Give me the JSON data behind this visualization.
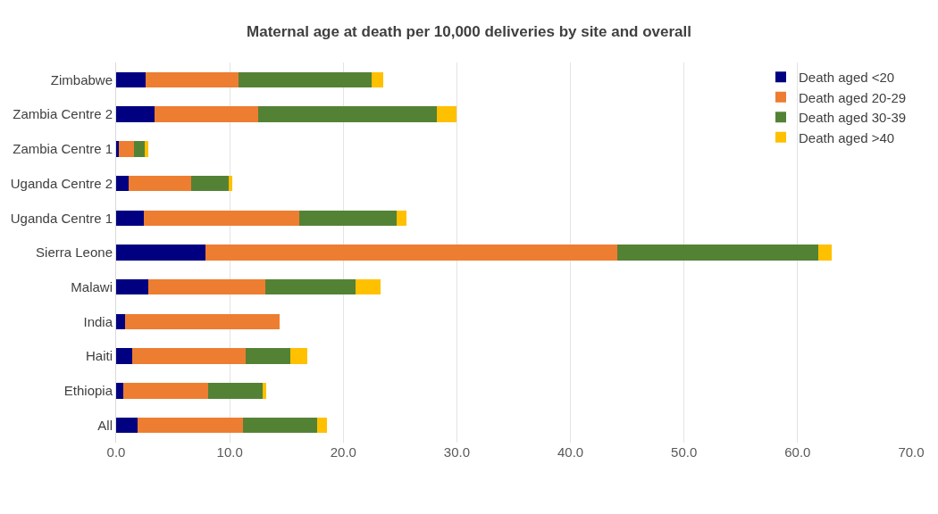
{
  "chart_data": {
    "type": "bar",
    "orientation": "horizontal",
    "stacked": true,
    "title": "Maternal age at death per 10,000 deliveries by site and overall",
    "categories": [
      "Zimbabwe",
      "Zambia Centre 2",
      "Zambia Centre 1",
      "Uganda Centre 2",
      "Uganda Centre 1",
      "Sierra Leone",
      "Malawi",
      "India",
      "Haiti",
      "Ethiopia",
      "All"
    ],
    "series": [
      {
        "name": "Death aged <20",
        "color": "#000080",
        "values": [
          2.6,
          3.4,
          0.2,
          1.1,
          2.4,
          7.9,
          2.8,
          0.8,
          1.4,
          0.6,
          1.9
        ]
      },
      {
        "name": "Death aged 20-29",
        "color": "#ed7d31",
        "values": [
          8.2,
          9.1,
          1.4,
          5.5,
          13.7,
          36.2,
          10.3,
          13.6,
          10.0,
          7.5,
          9.3
        ]
      },
      {
        "name": "Death aged 30-39",
        "color": "#548235",
        "values": [
          11.7,
          15.7,
          0.9,
          3.3,
          8.6,
          17.7,
          8.0,
          0,
          3.9,
          4.8,
          6.5
        ]
      },
      {
        "name": "Death aged >40",
        "color": "#ffc000",
        "values": [
          1.0,
          1.8,
          0.3,
          0.3,
          0.9,
          1.2,
          2.2,
          0,
          1.5,
          0.3,
          0.9
        ]
      }
    ],
    "xlim": [
      0,
      70
    ],
    "xticks": [
      {
        "value": 0,
        "label": "0.0"
      },
      {
        "value": 10,
        "label": "10.0"
      },
      {
        "value": 20,
        "label": "20.0"
      },
      {
        "value": 30,
        "label": "30.0"
      },
      {
        "value": 40,
        "label": "40.0"
      },
      {
        "value": 50,
        "label": "50.0"
      },
      {
        "value": 60,
        "label": "60.0"
      },
      {
        "value": 70,
        "label": "70.0"
      }
    ],
    "grid": "x",
    "legend": "top right"
  }
}
